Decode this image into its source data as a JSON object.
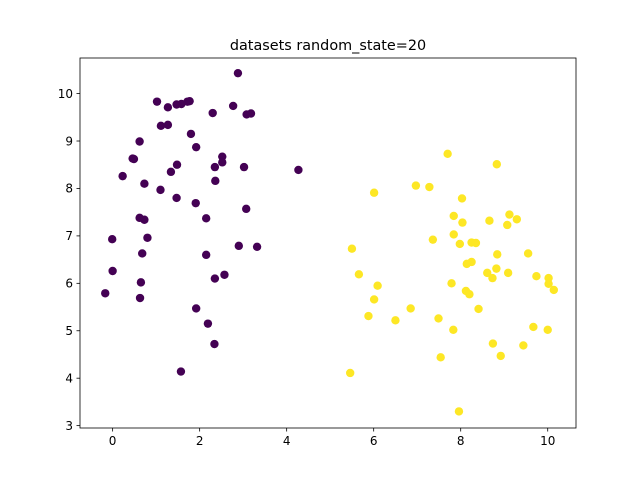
{
  "chart_data": {
    "type": "scatter",
    "title": "datasets random_state=20",
    "xlabel": "",
    "ylabel": "",
    "xlim": [
      -0.75,
      10.65
    ],
    "ylim": [
      2.95,
      10.75
    ],
    "xticks": [
      0,
      2,
      4,
      6,
      8,
      10
    ],
    "yticks": [
      3,
      4,
      5,
      6,
      7,
      8,
      9,
      10
    ],
    "xtick_labels": [
      "0",
      "2",
      "4",
      "6",
      "8",
      "10"
    ],
    "ytick_labels": [
      "3",
      "4",
      "5",
      "6",
      "7",
      "8",
      "9",
      "10"
    ],
    "grid": false,
    "legend": "none",
    "series": [
      {
        "color": "#440154",
        "points": [
          [
            2.88,
            10.43
          ],
          [
            1.02,
            9.83
          ],
          [
            1.58,
            9.78
          ],
          [
            1.72,
            9.83
          ],
          [
            1.77,
            9.84
          ],
          [
            1.27,
            9.71
          ],
          [
            2.77,
            9.74
          ],
          [
            1.47,
            9.77
          ],
          [
            2.3,
            9.59
          ],
          [
            3.08,
            9.56
          ],
          [
            3.18,
            9.58
          ],
          [
            1.11,
            9.32
          ],
          [
            1.27,
            9.34
          ],
          [
            1.8,
            9.15
          ],
          [
            0.62,
            8.99
          ],
          [
            1.92,
            8.87
          ],
          [
            0.46,
            8.63
          ],
          [
            0.49,
            8.62
          ],
          [
            1.48,
            8.5
          ],
          [
            2.52,
            8.67
          ],
          [
            2.52,
            8.55
          ],
          [
            2.35,
            8.45
          ],
          [
            3.02,
            8.45
          ],
          [
            1.34,
            8.35
          ],
          [
            0.23,
            8.26
          ],
          [
            2.36,
            8.16
          ],
          [
            0.73,
            8.1
          ],
          [
            1.1,
            7.97
          ],
          [
            1.47,
            7.8
          ],
          [
            1.91,
            7.69
          ],
          [
            3.07,
            7.57
          ],
          [
            2.15,
            7.37
          ],
          [
            0.62,
            7.38
          ],
          [
            0.73,
            7.34
          ],
          [
            0.8,
            6.96
          ],
          [
            -0.01,
            6.93
          ],
          [
            2.9,
            6.79
          ],
          [
            3.32,
            6.77
          ],
          [
            0.68,
            6.63
          ],
          [
            2.15,
            6.6
          ],
          [
            0.0,
            6.26
          ],
          [
            2.57,
            6.18
          ],
          [
            2.35,
            6.1
          ],
          [
            0.65,
            6.02
          ],
          [
            -0.17,
            5.79
          ],
          [
            0.63,
            5.69
          ],
          [
            1.92,
            5.47
          ],
          [
            2.19,
            5.15
          ],
          [
            2.34,
            4.72
          ],
          [
            1.57,
            4.14
          ],
          [
            4.27,
            8.39
          ]
        ]
      },
      {
        "color": "#fde725",
        "points": [
          [
            7.7,
            8.73
          ],
          [
            8.83,
            8.51
          ],
          [
            6.97,
            8.06
          ],
          [
            7.28,
            8.03
          ],
          [
            6.01,
            7.91
          ],
          [
            8.03,
            7.79
          ],
          [
            9.12,
            7.45
          ],
          [
            7.84,
            7.42
          ],
          [
            8.66,
            7.32
          ],
          [
            9.29,
            7.35
          ],
          [
            8.04,
            7.28
          ],
          [
            9.07,
            7.23
          ],
          [
            7.84,
            7.03
          ],
          [
            7.36,
            6.92
          ],
          [
            8.25,
            6.86
          ],
          [
            8.35,
            6.85
          ],
          [
            7.98,
            6.83
          ],
          [
            5.5,
            6.73
          ],
          [
            9.55,
            6.63
          ],
          [
            8.84,
            6.61
          ],
          [
            8.25,
            6.45
          ],
          [
            8.14,
            6.41
          ],
          [
            8.82,
            6.31
          ],
          [
            8.61,
            6.22
          ],
          [
            9.09,
            6.22
          ],
          [
            5.66,
            6.19
          ],
          [
            9.74,
            6.15
          ],
          [
            8.73,
            6.11
          ],
          [
            10.02,
            6.11
          ],
          [
            10.02,
            5.99
          ],
          [
            6.09,
            5.95
          ],
          [
            7.79,
            6.0
          ],
          [
            10.14,
            5.86
          ],
          [
            8.12,
            5.84
          ],
          [
            8.2,
            5.77
          ],
          [
            6.01,
            5.66
          ],
          [
            6.85,
            5.47
          ],
          [
            8.41,
            5.46
          ],
          [
            5.88,
            5.31
          ],
          [
            7.49,
            5.26
          ],
          [
            6.5,
            5.22
          ],
          [
            9.67,
            5.08
          ],
          [
            7.83,
            5.02
          ],
          [
            10.0,
            5.02
          ],
          [
            8.74,
            4.73
          ],
          [
            9.44,
            4.69
          ],
          [
            8.92,
            4.47
          ],
          [
            7.54,
            4.44
          ],
          [
            5.46,
            4.11
          ],
          [
            7.96,
            3.3
          ]
        ]
      }
    ]
  }
}
